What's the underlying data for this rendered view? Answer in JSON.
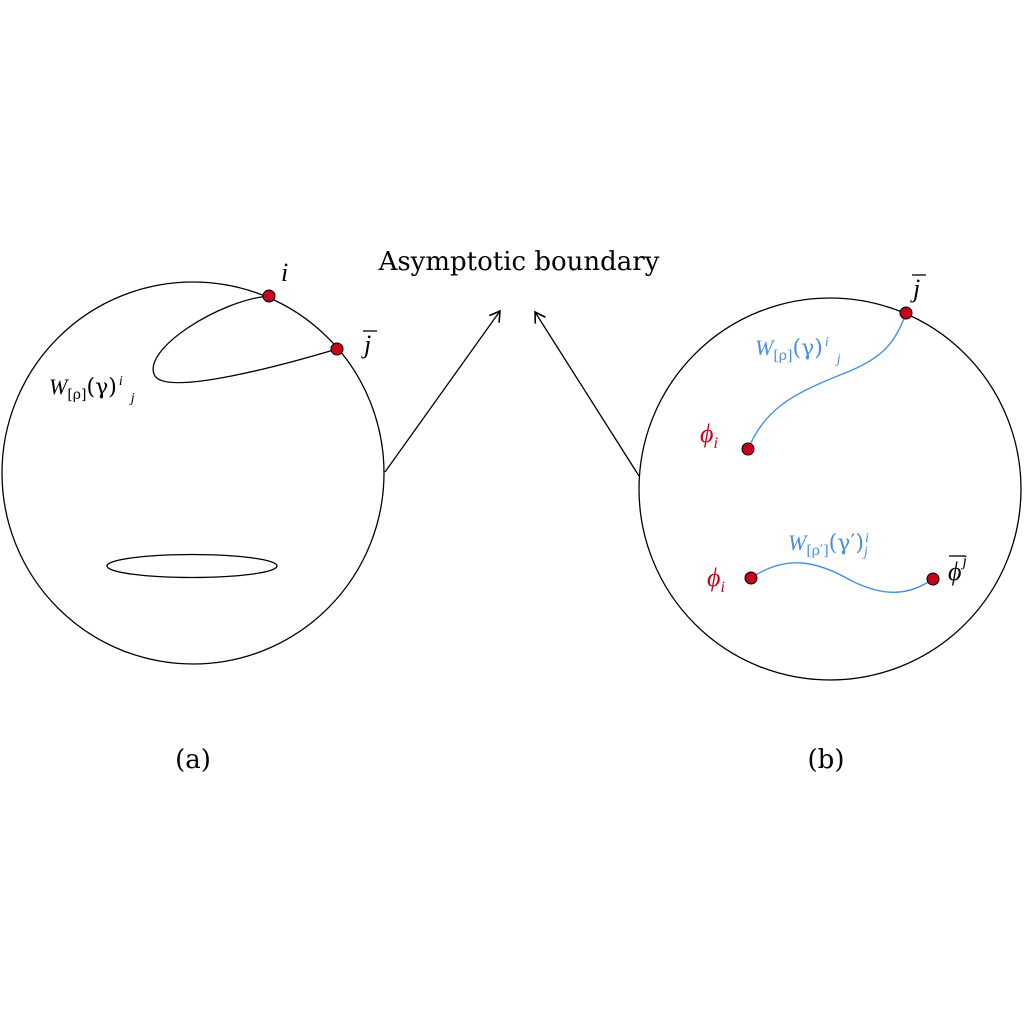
{
  "title": "Asymptotic boundary",
  "colors": {
    "ink": "#000000",
    "point": "#c8001e",
    "wilson": "#4a90e2"
  },
  "panel_a": {
    "caption": "(a)",
    "point_i_label": "i",
    "point_jbar_label": "j",
    "wilson_label": {
      "base": "W",
      "sub": "[ρ]",
      "arg": "(γ)",
      "sup": "i",
      "sub2": "j"
    }
  },
  "panel_b": {
    "caption": "(b)",
    "point_jbar_label": "j",
    "phi_upper_label": {
      "base": "ϕ",
      "sub": "i"
    },
    "phi_lower_label": {
      "base": "ϕ",
      "sub": "i"
    },
    "phibar_label": {
      "base": "ϕ",
      "sup": "j"
    },
    "wilson_upper_label": {
      "base": "W",
      "sub": "[ρ]",
      "arg": "(γ)",
      "sup": "i",
      "sub2": "j"
    },
    "wilson_lower_label": {
      "base": "W",
      "sub": "[ρ′]",
      "arg": "(γ′)",
      "sup": "i",
      "sub2": "j"
    }
  }
}
